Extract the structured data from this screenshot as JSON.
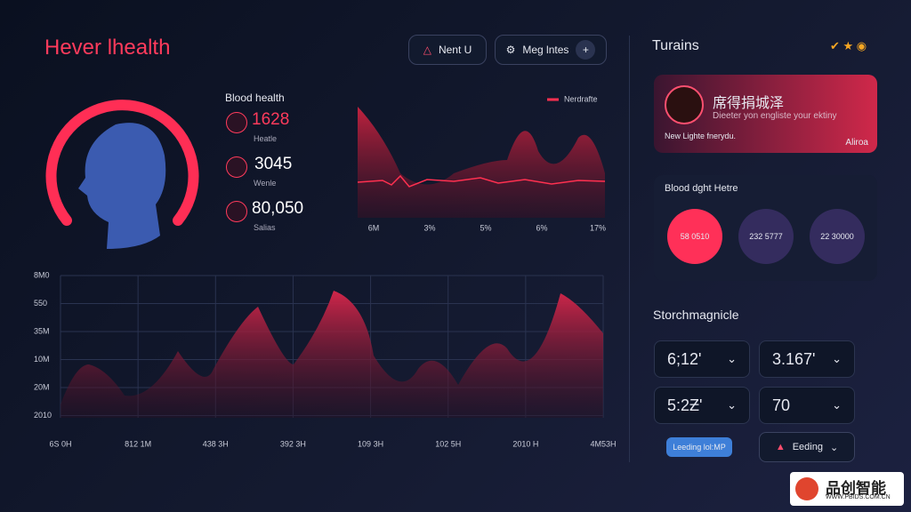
{
  "header": {
    "title": "Hever lhealth",
    "buttons": [
      "Nent U",
      "Meg lntes"
    ],
    "add": "+"
  },
  "stats": {
    "title": "Blood health",
    "items": [
      {
        "value": "1628",
        "label": "Heatle"
      },
      {
        "value": "3045",
        "label": "Wenle"
      },
      {
        "value": "80,050",
        "label": "Salias"
      }
    ]
  },
  "mini_chart": {
    "legend": "Nerdrafte",
    "x_labels": [
      "6M",
      "3%",
      "5%",
      "6%",
      "17%"
    ]
  },
  "main_chart": {
    "y_labels": [
      "8M0",
      "550",
      "35M",
      "10M",
      "20M",
      "2010"
    ],
    "x_labels": [
      "6S 0H",
      "812 1M",
      "438 3H",
      "392 3H",
      "109 3H",
      "102 5H",
      "2010 H",
      "4M53H"
    ]
  },
  "side": {
    "title": "Turains",
    "card": {
      "name": "席得捐城泽",
      "subtitle": "Dieeter yon engliste your ektiny",
      "note": "New Lighte fnerydu.",
      "tag": "Aliroa"
    },
    "circles": {
      "title": "Blood dght Hetre",
      "items": [
        "58 0510",
        "232 5777",
        "22 30000"
      ]
    },
    "section": "Storchmagnicle",
    "dropdowns": [
      "6;12'",
      "3.167'",
      "5:2Ƶ'",
      "70"
    ],
    "primary_button": "Leeding lol:MP",
    "secondary_button": "Eeding"
  },
  "watermark": {
    "name": "品创智能",
    "url": "WWW.PBIDS.COM.CN"
  }
}
